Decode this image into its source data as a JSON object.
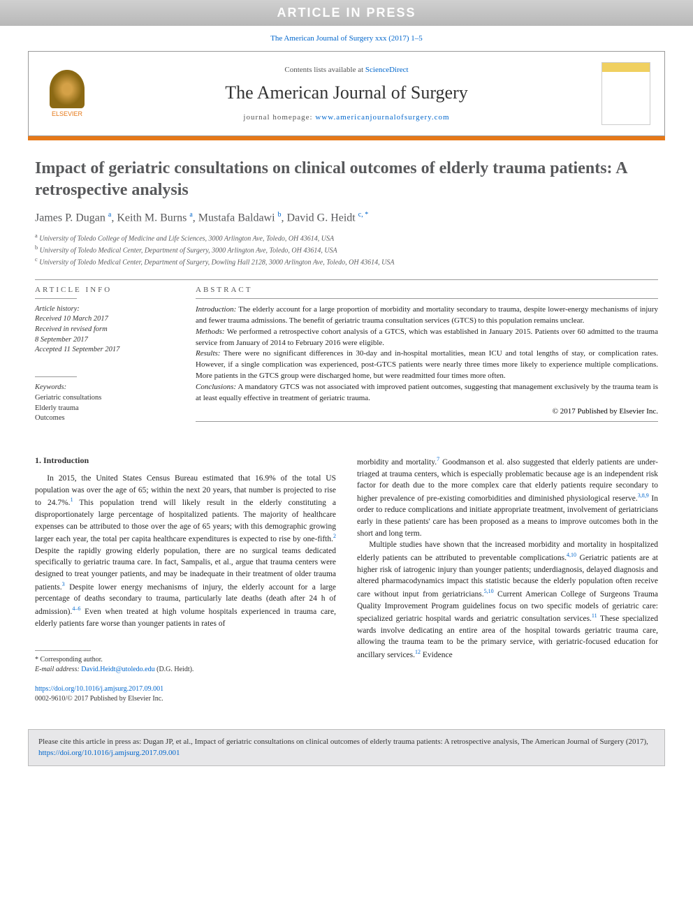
{
  "banner": "ARTICLE IN PRESS",
  "citation_top": "The American Journal of Surgery xxx (2017) 1–5",
  "header": {
    "contents_prefix": "Contents lists available at ",
    "contents_link": "ScienceDirect",
    "journal_name": "The American Journal of Surgery",
    "homepage_prefix": "journal homepage: ",
    "homepage_url": "www.americanjournalofsurgery.com",
    "elsevier_label": "ELSEVIER"
  },
  "colors": {
    "accent_orange": "#e67817",
    "link_blue": "#0066cc",
    "heading_gray": "#58595b"
  },
  "title": "Impact of geriatric consultations on clinical outcomes of elderly trauma patients: A retrospective analysis",
  "authors_html": "James P. Dugan <sup>a</sup>, Keith M. Burns <sup>a</sup>, Mustafa Baldawi <sup>b</sup>, David G. Heidt <sup>c, *</sup>",
  "affiliations": [
    {
      "sup": "a",
      "text": "University of Toledo College of Medicine and Life Sciences, 3000 Arlington Ave, Toledo, OH 43614, USA"
    },
    {
      "sup": "b",
      "text": "University of Toledo Medical Center, Department of Surgery, 3000 Arlington Ave, Toledo, OH 43614, USA"
    },
    {
      "sup": "c",
      "text": "University of Toledo Medical Center, Department of Surgery, Dowling Hall 2128, 3000 Arlington Ave, Toledo, OH 43614, USA"
    }
  ],
  "article_info": {
    "heading": "ARTICLE INFO",
    "history_label": "Article history:",
    "history": [
      "Received 10 March 2017",
      "Received in revised form",
      "8 September 2017",
      "Accepted 11 September 2017"
    ],
    "keywords_label": "Keywords:",
    "keywords": [
      "Geriatric consultations",
      "Elderly trauma",
      "Outcomes"
    ]
  },
  "abstract": {
    "heading": "ABSTRACT",
    "sections": [
      {
        "label": "Introduction:",
        "text": "The elderly account for a large proportion of morbidity and mortality secondary to trauma, despite lower-energy mechanisms of injury and fewer trauma admissions. The benefit of geriatric trauma consultation services (GTCS) to this population remains unclear."
      },
      {
        "label": "Methods:",
        "text": "We performed a retrospective cohort analysis of a GTCS, which was established in January 2015. Patients over 60 admitted to the trauma service from January of 2014 to February 2016 were eligible."
      },
      {
        "label": "Results:",
        "text": "There were no significant differences in 30-day and in-hospital mortalities, mean ICU and total lengths of stay, or complication rates. However, if a single complication was experienced, post-GTCS patients were nearly three times more likely to experience multiple complications. More patients in the GTCS group were discharged home, but were readmitted four times more often."
      },
      {
        "label": "Conclusions:",
        "text": "A mandatory GTCS was not associated with improved patient outcomes, suggesting that management exclusively by the trauma team is at least equally effective in treatment of geriatric trauma."
      }
    ],
    "copyright": "© 2017 Published by Elsevier Inc."
  },
  "body": {
    "section_heading": "1. Introduction",
    "col1_paras": [
      "In 2015, the United States Census Bureau estimated that 16.9% of the total US population was over the age of 65; within the next 20 years, that number is projected to rise to 24.7%.<sup>1</sup> This population trend will likely result in the elderly constituting a disproportionately large percentage of hospitalized patients. The majority of healthcare expenses can be attributed to those over the age of 65 years; with this demographic growing larger each year, the total per capita healthcare expenditures is expected to rise by one-fifth.<sup>2</sup> Despite the rapidly growing elderly population, there are no surgical teams dedicated specifically to geriatric trauma care. In fact, Sampalis, et al., argue that trauma centers were designed to treat younger patients, and may be inadequate in their treatment of older trauma patients.<sup>3</sup> Despite lower energy mechanisms of injury, the elderly account for a large percentage of deaths secondary to trauma, particularly late deaths (death after 24 h of admission).<sup>4–6</sup> Even when treated at high volume hospitals experienced in trauma care, elderly patients fare worse than younger patients in rates of"
    ],
    "col2_paras": [
      "morbidity and mortality.<sup>7</sup> Goodmanson et al. also suggested that elderly patients are under-triaged at trauma centers, which is especially problematic because age is an independent risk factor for death due to the more complex care that elderly patients require secondary to higher prevalence of pre-existing comorbidities and diminished physiological reserve.<sup>3,8,9</sup> In order to reduce complications and initiate appropriate treatment, involvement of geriatricians early in these patients' care has been proposed as a means to improve outcomes both in the short and long term.",
      "Multiple studies have shown that the increased morbidity and mortality in hospitalized elderly patients can be attributed to preventable complications.<sup>4,10</sup> Geriatric patients are at higher risk of iatrogenic injury than younger patients; underdiagnosis, delayed diagnosis and altered pharmacodynamics impact this statistic because the elderly population often receive care without input from geriatricians.<sup>5,10</sup> Current American College of Surgeons Trauma Quality Improvement Program guidelines focus on two specific models of geriatric care: specialized geriatric hospital wards and geriatric consultation services.<sup>11</sup> These specialized wards involve dedicating an entire area of the hospital towards geriatric trauma care, allowing the trauma team to be the primary service, with geriatric-focused education for ancillary services.<sup>12</sup> Evidence"
    ]
  },
  "footnotes": {
    "corresponding": "* Corresponding author.",
    "email_label": "E-mail address:",
    "email": "David.Heidt@utoledo.edu",
    "email_suffix": "(D.G. Heidt)."
  },
  "doi": {
    "url": "https://doi.org/10.1016/j.amjsurg.2017.09.001",
    "issn_line": "0002-9610/© 2017 Published by Elsevier Inc."
  },
  "cite_box": {
    "prefix": "Please cite this article in press as: Dugan JP, et al., Impact of geriatric consultations on clinical outcomes of elderly trauma patients: A retrospective analysis, The American Journal of Surgery (2017), ",
    "url": "https://doi.org/10.1016/j.amjsurg.2017.09.001"
  }
}
